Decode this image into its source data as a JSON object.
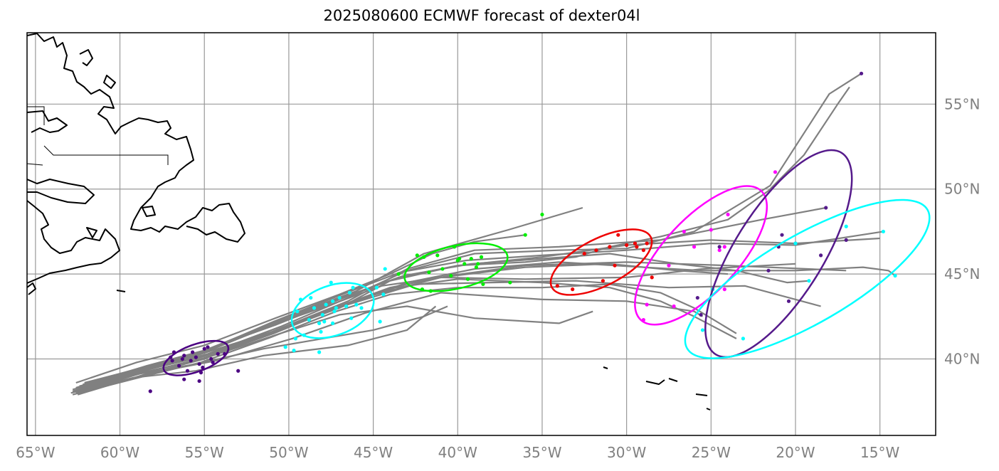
{
  "title": "2025080600 ECMWF forecast of dexter04l",
  "map": {
    "lon_range": [
      -65.5,
      -11.7
    ],
    "lat_range": [
      35.5,
      59.2
    ],
    "grid": true,
    "grid_color": "#999999",
    "lon_ticks": [
      {
        "lon": -65,
        "label": "65°W"
      },
      {
        "lon": -60,
        "label": "60°W"
      },
      {
        "lon": -55,
        "label": "55°W"
      },
      {
        "lon": -50,
        "label": "50°W"
      },
      {
        "lon": -45,
        "label": "45°W"
      },
      {
        "lon": -40,
        "label": "40°W"
      },
      {
        "lon": -35,
        "label": "35°W"
      },
      {
        "lon": -30,
        "label": "30°W"
      },
      {
        "lon": -25,
        "label": "25°W"
      },
      {
        "lon": -20,
        "label": "20°W"
      },
      {
        "lon": -15,
        "label": "15°W"
      }
    ],
    "lat_ticks": [
      {
        "lat": 40,
        "label": "40°N"
      },
      {
        "lat": 45,
        "label": "45°N"
      },
      {
        "lat": 50,
        "label": "50°N"
      },
      {
        "lat": 55,
        "label": "55°N"
      }
    ]
  },
  "track_color": "#808080",
  "tracks": [
    [
      [
        -62.8,
        38.1
      ],
      [
        -59,
        39.3
      ],
      [
        -55.5,
        40.2
      ],
      [
        -51,
        41.6
      ],
      [
        -47,
        43
      ],
      [
        -44,
        44.6
      ],
      [
        -40,
        45.5
      ],
      [
        -35,
        46
      ],
      [
        -30,
        46.7
      ],
      [
        -25,
        47
      ],
      [
        -20,
        46.8
      ],
      [
        -15,
        47.1
      ]
    ],
    [
      [
        -62.5,
        37.9
      ],
      [
        -58.5,
        39.1
      ],
      [
        -55,
        40
      ],
      [
        -50.5,
        41.8
      ],
      [
        -46.5,
        43.4
      ],
      [
        -43,
        45.3
      ],
      [
        -39,
        46.4
      ],
      [
        -34,
        46.6
      ],
      [
        -28,
        47
      ],
      [
        -22,
        48.2
      ],
      [
        -18.2,
        48.9
      ]
    ],
    [
      [
        -62.6,
        38.3
      ],
      [
        -58.7,
        39.5
      ],
      [
        -55.2,
        40.3
      ],
      [
        -51,
        42
      ],
      [
        -47.5,
        43.2
      ],
      [
        -44.5,
        44.3
      ],
      [
        -41,
        44.8
      ],
      [
        -36,
        44.7
      ],
      [
        -30,
        44.8
      ],
      [
        -25.5,
        45.3
      ],
      [
        -20,
        45.6
      ]
    ],
    [
      [
        -62.2,
        38.5
      ],
      [
        -58,
        39.7
      ],
      [
        -55,
        40.5
      ],
      [
        -50,
        42.5
      ],
      [
        -46,
        44
      ],
      [
        -42,
        46.2
      ],
      [
        -37,
        47.6
      ],
      [
        -32.6,
        48.9
      ]
    ],
    [
      [
        -62.3,
        38.2
      ],
      [
        -58.2,
        39.3
      ],
      [
        -54.8,
        40.1
      ],
      [
        -50.5,
        41.5
      ],
      [
        -47,
        42.6
      ],
      [
        -43,
        43.1
      ],
      [
        -39,
        42.4
      ],
      [
        -34,
        42.1
      ],
      [
        -32,
        42.8
      ]
    ],
    [
      [
        -62.8,
        37.9
      ],
      [
        -58.5,
        39
      ],
      [
        -55.2,
        39.8
      ],
      [
        -51,
        41.3
      ],
      [
        -47.2,
        42.8
      ],
      [
        -44,
        43.8
      ],
      [
        -40,
        44.2
      ],
      [
        -35,
        44.2
      ],
      [
        -31,
        44.4
      ],
      [
        -28,
        43.9
      ],
      [
        -26,
        43
      ],
      [
        -23.5,
        41.5
      ]
    ],
    [
      [
        -62.6,
        38.6
      ],
      [
        -59,
        39.8
      ],
      [
        -55,
        40.8
      ],
      [
        -50.8,
        42.4
      ],
      [
        -47,
        43.8
      ],
      [
        -44,
        45
      ],
      [
        -41.5,
        46.2
      ],
      [
        -39,
        46.9
      ],
      [
        -36,
        47.3
      ]
    ],
    [
      [
        -62.1,
        38.6
      ],
      [
        -58.2,
        39.6
      ],
      [
        -54.6,
        40.3
      ],
      [
        -50.2,
        41.8
      ],
      [
        -46,
        43.5
      ],
      [
        -41,
        44.8
      ],
      [
        -36,
        45.4
      ],
      [
        -31,
        45.6
      ],
      [
        -27,
        45.2
      ],
      [
        -24,
        45
      ]
    ],
    [
      [
        -62.4,
        38.4
      ],
      [
        -58.4,
        39.4
      ],
      [
        -55,
        40.2
      ],
      [
        -50.5,
        41.7
      ],
      [
        -46.5,
        43.2
      ],
      [
        -42.5,
        44.4
      ],
      [
        -38,
        44.5
      ],
      [
        -33,
        44.6
      ],
      [
        -27.5,
        44.2
      ],
      [
        -23,
        44.3
      ],
      [
        -18.5,
        43.1
      ]
    ],
    [
      [
        -62.5,
        38.0
      ],
      [
        -58,
        39.2
      ],
      [
        -54.3,
        39.9
      ],
      [
        -49.8,
        41.2
      ],
      [
        -45.5,
        42.7
      ],
      [
        -41,
        43.9
      ],
      [
        -35,
        43.5
      ],
      [
        -30,
        43.4
      ],
      [
        -26,
        42.8
      ],
      [
        -25.5,
        42.5
      ]
    ],
    [
      [
        -62.8,
        38.1
      ],
      [
        -59,
        39.1
      ],
      [
        -55.5,
        39.7
      ],
      [
        -51.5,
        40.6
      ],
      [
        -48,
        41.2
      ],
      [
        -45,
        41.7
      ],
      [
        -42,
        42.5
      ],
      [
        -40.6,
        43.1
      ]
    ],
    [
      [
        -62.9,
        38.0
      ],
      [
        -59.2,
        38.9
      ],
      [
        -55.5,
        39.3
      ],
      [
        -51.5,
        40.2
      ],
      [
        -46.5,
        40.8
      ],
      [
        -43,
        41.7
      ],
      [
        -41.3,
        43.1
      ]
    ],
    [
      [
        -62.5,
        38.1
      ],
      [
        -58.2,
        39.4
      ],
      [
        -54.8,
        40.3
      ],
      [
        -50.5,
        41.9
      ],
      [
        -46.5,
        43.6
      ],
      [
        -43,
        45.2
      ],
      [
        -39,
        46.2
      ],
      [
        -34,
        46.4
      ],
      [
        -30,
        46.5
      ],
      [
        -26,
        47.5
      ],
      [
        -21.5,
        50.2
      ],
      [
        -18,
        55.6
      ],
      [
        -16.1,
        56.8
      ]
    ],
    [
      [
        -62.7,
        38.1
      ],
      [
        -58.8,
        39.4
      ],
      [
        -55.3,
        40.4
      ],
      [
        -50.8,
        42
      ],
      [
        -47,
        43.5
      ],
      [
        -43.5,
        44.8
      ],
      [
        -40,
        45.5
      ],
      [
        -36,
        45.7
      ],
      [
        -33,
        46
      ],
      [
        -31,
        46.6
      ],
      [
        -28,
        47.2
      ],
      [
        -24,
        48.2
      ],
      [
        -21.6,
        49.9
      ],
      [
        -19.5,
        52
      ],
      [
        -17.5,
        55
      ],
      [
        -16.8,
        56
      ]
    ],
    [
      [
        -62.4,
        38.2
      ],
      [
        -58.3,
        39.4
      ],
      [
        -54.9,
        40.2
      ],
      [
        -50.7,
        41.7
      ],
      [
        -46.8,
        43.1
      ],
      [
        -43,
        44.5
      ],
      [
        -39,
        45.3
      ],
      [
        -34,
        45.7
      ],
      [
        -29,
        45.4
      ],
      [
        -25.5,
        45.2
      ],
      [
        -20,
        45.2
      ],
      [
        -16,
        45.4
      ],
      [
        -14.5,
        45.2
      ],
      [
        -14.1,
        44.9
      ]
    ],
    [
      [
        -62.6,
        38.3
      ],
      [
        -58.6,
        39.5
      ],
      [
        -55.1,
        40.4
      ],
      [
        -50.9,
        42.2
      ],
      [
        -47.1,
        43.7
      ],
      [
        -43.4,
        45.1
      ],
      [
        -39.5,
        45.8
      ],
      [
        -35,
        46.1
      ],
      [
        -30,
        46.4
      ],
      [
        -25,
        46.8
      ],
      [
        -20,
        46.7
      ],
      [
        -14.8,
        47.5
      ]
    ],
    [
      [
        -62.3,
        38.4
      ],
      [
        -58.4,
        39.6
      ],
      [
        -55,
        40.5
      ],
      [
        -50.8,
        42.1
      ],
      [
        -46.9,
        43.6
      ],
      [
        -43.2,
        44.9
      ],
      [
        -39.2,
        45.6
      ],
      [
        -35,
        45.9
      ],
      [
        -31,
        46.2
      ],
      [
        -27,
        45.6
      ],
      [
        -23.5,
        45.2
      ],
      [
        -20.5,
        44.5
      ],
      [
        -19.2,
        44.6
      ]
    ],
    [
      [
        -62.6,
        38.0
      ],
      [
        -58.6,
        39.2
      ],
      [
        -55.2,
        40
      ],
      [
        -50.9,
        41.5
      ],
      [
        -47.2,
        43
      ],
      [
        -43.7,
        44.2
      ],
      [
        -40,
        44.7
      ],
      [
        -35,
        44.5
      ],
      [
        -31,
        44.2
      ],
      [
        -28,
        43.4
      ],
      [
        -26,
        42.5
      ],
      [
        -23.5,
        41.2
      ]
    ],
    [
      [
        -62.8,
        38.2
      ],
      [
        -58.8,
        39.3
      ],
      [
        -55.2,
        40.1
      ],
      [
        -51,
        41.6
      ],
      [
        -47.3,
        43
      ],
      [
        -44,
        44.2
      ],
      [
        -40.5,
        44.9
      ],
      [
        -36,
        45.5
      ],
      [
        -30,
        45.7
      ],
      [
        -24,
        45.5
      ],
      [
        -17,
        45.2
      ]
    ]
  ],
  "clusters": [
    {
      "color": "#4B0082",
      "ellipse": {
        "lon": -55.5,
        "lat": 40.05,
        "rx": 48,
        "ry": 19,
        "rot": -20
      },
      "points": [
        [
          -56.8,
          40.4
        ],
        [
          -56.2,
          40.2
        ],
        [
          -55.5,
          40.1
        ],
        [
          -55,
          40.6
        ],
        [
          -54.2,
          40.3
        ],
        [
          -55.8,
          39.9
        ],
        [
          -56.5,
          39.6
        ],
        [
          -55.1,
          39.5
        ],
        [
          -54.5,
          39.8
        ],
        [
          -56.9,
          39.9
        ],
        [
          -55.7,
          40.4
        ],
        [
          -55.3,
          39.7
        ],
        [
          -53.8,
          40.3
        ],
        [
          -56,
          39.3
        ],
        [
          -55.2,
          39.2
        ],
        [
          -54.8,
          40.7
        ],
        [
          -53,
          39.3
        ],
        [
          -55.3,
          38.7
        ],
        [
          -56.2,
          38.8
        ],
        [
          -58.2,
          38.1
        ],
        [
          -57,
          40.1
        ],
        [
          -54.6,
          40
        ],
        [
          -56.3,
          40
        ]
      ]
    },
    {
      "color": "#00FFFF",
      "ellipse": {
        "lon": -47.4,
        "lat": 42.85,
        "rx": 60,
        "ry": 35,
        "rot": -20
      },
      "points": [
        [
          -49.3,
          43.5
        ],
        [
          -48.5,
          43
        ],
        [
          -47.8,
          43.2
        ],
        [
          -47.4,
          43.4
        ],
        [
          -47,
          43.6
        ],
        [
          -46.6,
          43.1
        ],
        [
          -47.3,
          42.8
        ],
        [
          -48,
          42.6
        ],
        [
          -48.8,
          42.3
        ],
        [
          -46,
          43.2
        ],
        [
          -45.7,
          43
        ],
        [
          -46.2,
          44.2
        ],
        [
          -47.5,
          44.5
        ],
        [
          -46.4,
          43.9
        ],
        [
          -49.5,
          42.8
        ],
        [
          -48.2,
          42.1
        ],
        [
          -47.4,
          42.1
        ],
        [
          -46.3,
          42.4
        ],
        [
          -49.1,
          41.4
        ],
        [
          -48.1,
          41.6
        ],
        [
          -49.6,
          41.2
        ],
        [
          -48.2,
          40.4
        ],
        [
          -50.2,
          40.7
        ],
        [
          -49.7,
          40.5
        ],
        [
          -44.8,
          44.2
        ],
        [
          -44.4,
          43.8
        ],
        [
          -44.6,
          42.2
        ],
        [
          -48.7,
          43.6
        ],
        [
          -47.2,
          43
        ],
        [
          -47.9,
          42.2
        ],
        [
          -44.3,
          45.3
        ]
      ],
      "ellipse_note": ""
    },
    {
      "color": "#00EE00",
      "ellipse": {
        "lon": -40.1,
        "lat": 45.4,
        "rx": 74,
        "ry": 30,
        "rot": -13
      },
      "points": [
        [
          -42,
          46
        ],
        [
          -41.2,
          46.1
        ],
        [
          -40.2,
          46.6
        ],
        [
          -39.9,
          45.9
        ],
        [
          -39.6,
          45.6
        ],
        [
          -39.2,
          45.9
        ],
        [
          -38.8,
          45.6
        ],
        [
          -38.6,
          46
        ],
        [
          -40.9,
          45.3
        ],
        [
          -41.7,
          45.1
        ],
        [
          -42.1,
          44.1
        ],
        [
          -40.4,
          44.9
        ],
        [
          -39.4,
          44.7
        ],
        [
          -38.5,
          44.4
        ],
        [
          -41.6,
          44
        ],
        [
          -36.9,
          44.5
        ],
        [
          -36,
          47.3
        ],
        [
          -35,
          48.5
        ],
        [
          -42.4,
          46.1
        ],
        [
          -43.5,
          45
        ],
        [
          -38.9,
          45.4
        ],
        [
          -40,
          45.8
        ]
      ]
    },
    {
      "color": "#EE0000",
      "ellipse": {
        "lon": -31.5,
        "lat": 45.7,
        "rx": 78,
        "ry": 33,
        "rot": -27
      },
      "points": [
        [
          -32.5,
          46.2
        ],
        [
          -31.8,
          46.4
        ],
        [
          -31,
          46.6
        ],
        [
          -30.5,
          47.3
        ],
        [
          -29.5,
          46.8
        ],
        [
          -28.8,
          46.8
        ],
        [
          -29,
          46.4
        ],
        [
          -30,
          46.7
        ],
        [
          -30.7,
          45.5
        ],
        [
          -31.4,
          44.6
        ],
        [
          -33.2,
          44.1
        ],
        [
          -28.5,
          44.8
        ],
        [
          -29.4,
          46.6
        ],
        [
          -34.1,
          44.3
        ]
      ]
    },
    {
      "color": "#FF00FF",
      "ellipse": {
        "lon": -25.6,
        "lat": 46.1,
        "rx": 124,
        "ry": 52,
        "rot": -47
      },
      "points": [
        [
          -26.6,
          47.5
        ],
        [
          -25,
          47.6
        ],
        [
          -24,
          48.5
        ],
        [
          -26,
          46.6
        ],
        [
          -24.2,
          46.6
        ],
        [
          -24.5,
          46.4
        ],
        [
          -27.5,
          45.5
        ],
        [
          -24.2,
          44.1
        ],
        [
          -28.8,
          43.2
        ],
        [
          -27.2,
          43.1
        ],
        [
          -29,
          42.3
        ],
        [
          -21.2,
          51
        ]
      ]
    },
    {
      "color": "#551A8B",
      "ellipse": {
        "lon": -21,
        "lat": 46.2,
        "rx": 167,
        "ry": 62,
        "rot": -58
      },
      "points": [
        [
          -16.1,
          56.8
        ],
        [
          -18.2,
          48.9
        ],
        [
          -20.8,
          47.3
        ],
        [
          -21,
          46.6
        ],
        [
          -20,
          46.8
        ],
        [
          -17,
          47
        ],
        [
          -18.5,
          46.1
        ],
        [
          -21.6,
          45.2
        ],
        [
          -20.4,
          43.4
        ],
        [
          -25.6,
          42.6
        ],
        [
          -25.8,
          43.6
        ],
        [
          -24.5,
          46.6
        ]
      ]
    },
    {
      "color": "#00FFFF",
      "ellipse": {
        "lon": -19.3,
        "lat": 44.7,
        "rx": 195,
        "ry": 62,
        "rot": -30
      },
      "points": [
        [
          -14.8,
          47.5
        ],
        [
          -14.1,
          44.9
        ],
        [
          -19.2,
          44.6
        ],
        [
          -17,
          47.8
        ],
        [
          -20,
          46.8
        ],
        [
          -23.1,
          41.2
        ],
        [
          -25.5,
          41.7
        ],
        [
          -24.9,
          44.1
        ]
      ]
    }
  ]
}
